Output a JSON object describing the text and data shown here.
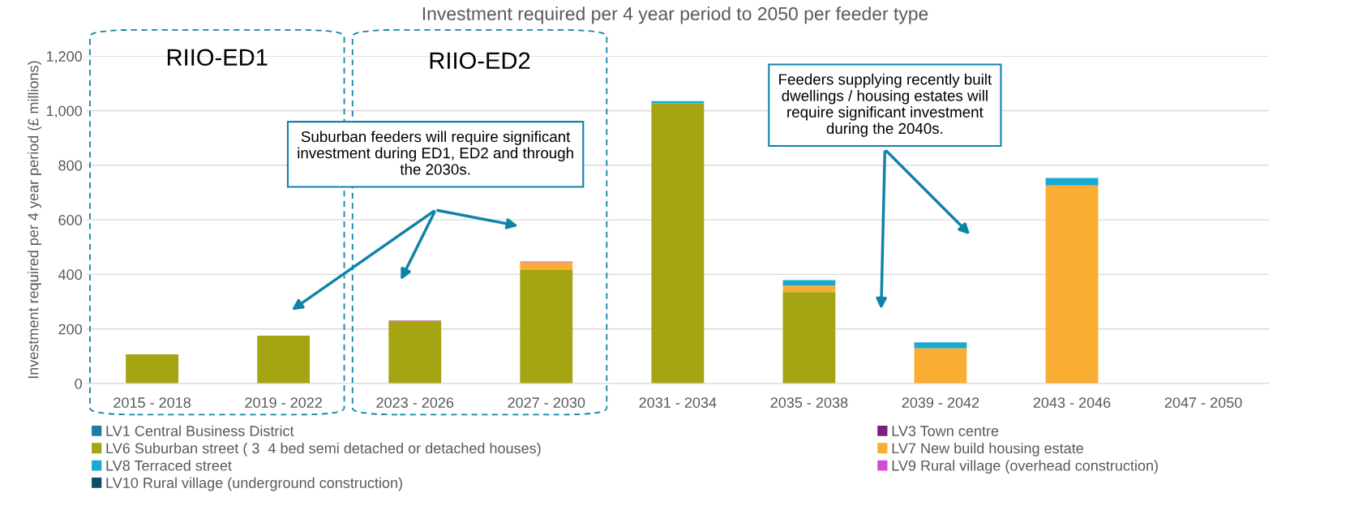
{
  "chart_data": {
    "type": "bar",
    "title": "Investment required per 4 year period to 2050 per feeder type",
    "ylabel": "Investment required per 4 year period (£ millions)",
    "categories": [
      "2015 - 2018",
      "2019 - 2022",
      "2023 - 2026",
      "2027 - 2030",
      "2031 - 2034",
      "2035 - 2038",
      "2039 - 2042",
      "2043 - 2046",
      "2047 - 2050"
    ],
    "series": [
      {
        "name": "LV1 Central Business District",
        "color": "#1b7fa6",
        "values": [
          0,
          0,
          0,
          0,
          0,
          0,
          0,
          0,
          0
        ]
      },
      {
        "name": "LV3 Town centre",
        "color": "#7b1f7b",
        "values": [
          0,
          0,
          0,
          0,
          0,
          0,
          0,
          0,
          0
        ]
      },
      {
        "name": "LV6 Suburban street ( 3  4 bed semi detached or detached houses)",
        "color": "#a5a513",
        "values": [
          107,
          175,
          230,
          416,
          1027,
          335,
          0,
          0,
          0
        ]
      },
      {
        "name": "LV7 New build housing estate",
        "color": "#f9ae33",
        "values": [
          0,
          0,
          0,
          28,
          0,
          24,
          129,
          726,
          0
        ]
      },
      {
        "name": "LV8 Terraced street",
        "color": "#1ba9d0",
        "values": [
          0,
          0,
          0,
          0,
          8,
          20,
          22,
          27,
          0
        ]
      },
      {
        "name": "LV9 Rural village (overhead construction)",
        "color": "#d14bd6",
        "values": [
          0,
          0,
          2,
          3,
          0,
          0,
          0,
          0,
          0
        ]
      },
      {
        "name": "LV10 Rural village (underground construction)",
        "color": "#0d4f66",
        "values": [
          0,
          0,
          0,
          0,
          0,
          0,
          0,
          0,
          0
        ]
      }
    ],
    "stacked": true,
    "ylim": [
      0,
      1200
    ],
    "yticks": [
      0,
      200,
      400,
      600,
      800,
      {
        "value": 1000,
        "label": "1,000"
      },
      {
        "value": 1200,
        "label": "1,200"
      }
    ],
    "grid": "y",
    "legend": "bottom",
    "annotations": [
      "RIIO-ED1",
      "RIIO-ED2",
      "Suburban feeders will require significant investment during ED1, ED2 and through the 2030s.",
      "Feeders supplying recently built dwellings / housing estates will require significant investment during the 2040s."
    ]
  }
}
